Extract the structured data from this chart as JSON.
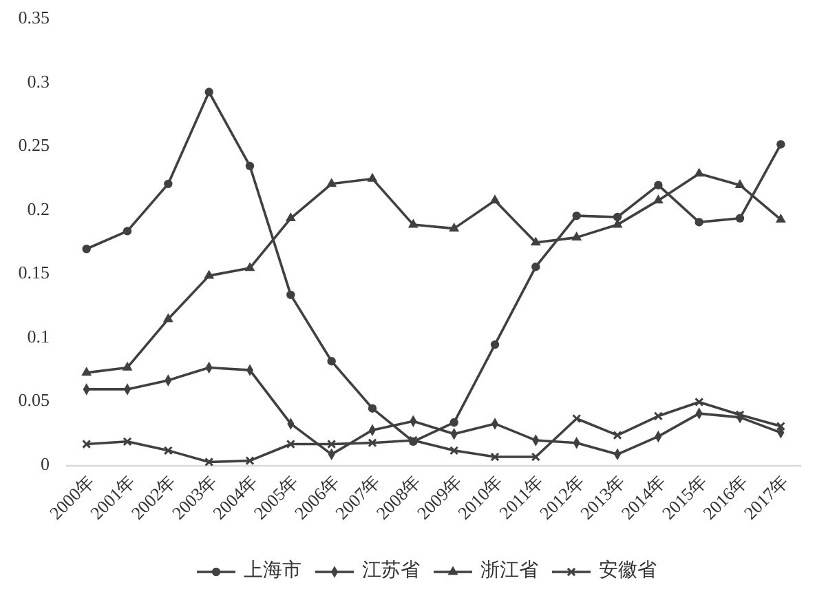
{
  "chart_data": {
    "type": "line",
    "categories": [
      "2000年",
      "2001年",
      "2002年",
      "2003年",
      "2004年",
      "2005年",
      "2006年",
      "2007年",
      "2008年",
      "2009年",
      "2010年",
      "2011年",
      "2012年",
      "2013年",
      "2014年",
      "2015年",
      "2016年",
      "2017年"
    ],
    "ylim": [
      0,
      0.35
    ],
    "yticks": [
      0,
      0.05,
      0.1,
      0.15,
      0.2,
      0.25,
      0.3,
      0.35
    ],
    "legend": "bottom",
    "series": [
      {
        "name": "上海市",
        "color": "#404040",
        "marker": "circle",
        "values": [
          0.17,
          0.184,
          0.221,
          0.293,
          0.235,
          0.134,
          0.082,
          0.045,
          0.019,
          0.034,
          0.095,
          0.156,
          0.196,
          0.195,
          0.22,
          0.191,
          0.194,
          0.252
        ]
      },
      {
        "name": "江苏省",
        "color": "#404040",
        "marker": "diamond",
        "values": [
          0.06,
          0.06,
          0.067,
          0.077,
          0.075,
          0.033,
          0.009,
          0.028,
          0.035,
          0.025,
          0.033,
          0.02,
          0.018,
          0.009,
          0.023,
          0.041,
          0.038,
          0.026
        ]
      },
      {
        "name": "浙江省",
        "color": "#404040",
        "marker": "triangle",
        "values": [
          0.073,
          0.077,
          0.115,
          0.149,
          0.155,
          0.194,
          0.221,
          0.225,
          0.189,
          0.186,
          0.208,
          0.175,
          0.179,
          0.189,
          0.208,
          0.229,
          0.22,
          0.193
        ]
      },
      {
        "name": "安徽省",
        "color": "#404040",
        "marker": "cross",
        "values": [
          0.017,
          0.019,
          0.012,
          0.003,
          0.004,
          0.017,
          0.017,
          0.018,
          0.02,
          0.012,
          0.007,
          0.007,
          0.037,
          0.024,
          0.039,
          0.05,
          0.04,
          0.031
        ]
      }
    ]
  }
}
